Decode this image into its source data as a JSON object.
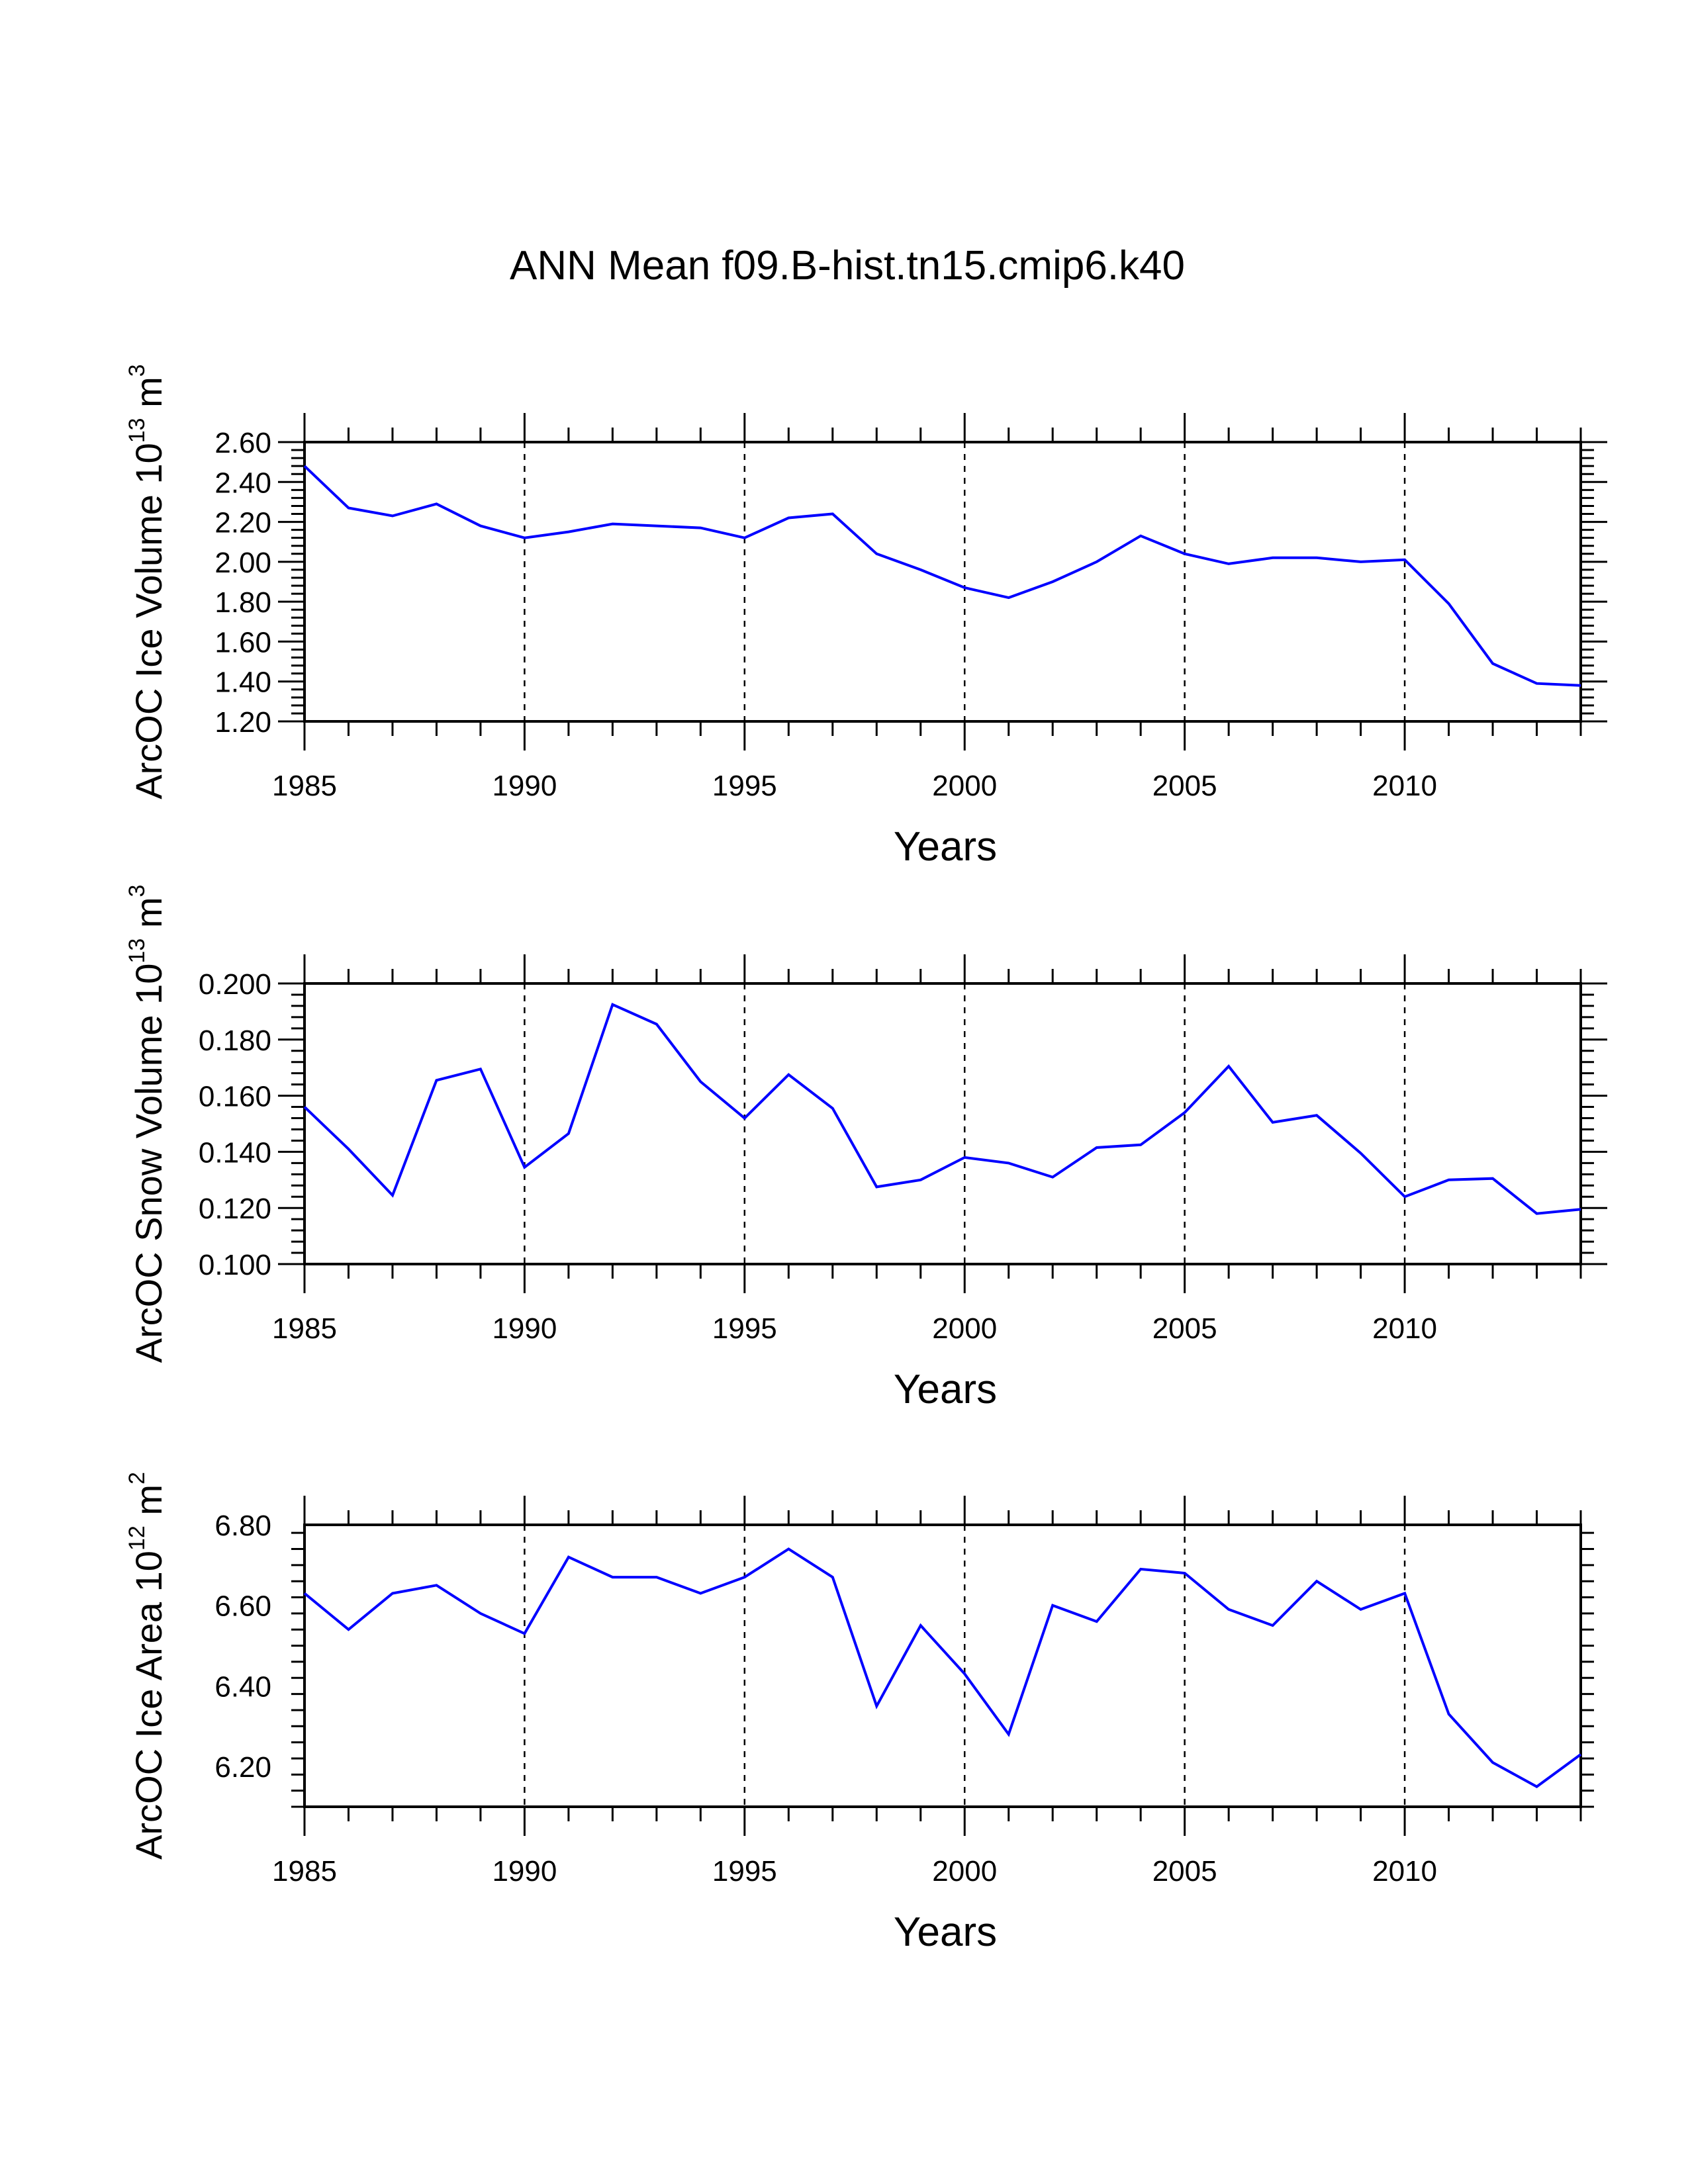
{
  "title": "ANN Mean f09.B-hist.tn15.cmip6.k40",
  "chart_data": [
    {
      "type": "line",
      "xlabel": "Years",
      "ylabel_main": "ArcOC Ice Volume 10",
      "ylabel_exp": "13",
      "ylabel_unit": " m",
      "ylabel_unit_exp": "3",
      "xlim": [
        1985,
        2014
      ],
      "ylim": [
        1.2,
        2.6
      ],
      "xticks": [
        1985,
        1990,
        1995,
        2000,
        2005,
        2010
      ],
      "xtick_labels": [
        "1985",
        "1990",
        "1995",
        "2000",
        "2005",
        "2010"
      ],
      "yticks": [
        1.2,
        1.4,
        1.6,
        1.8,
        2.0,
        2.2,
        2.4,
        2.6
      ],
      "ytick_labels": [
        "1.20",
        "1.40",
        "1.60",
        "1.80",
        "2.00",
        "2.20",
        "2.40",
        "2.60"
      ],
      "vgrid": [
        1990,
        1995,
        2000,
        2005,
        2010
      ],
      "line_color": "#0000ff",
      "x": [
        1985,
        1986,
        1987,
        1988,
        1989,
        1990,
        1991,
        1992,
        1993,
        1994,
        1995,
        1996,
        1997,
        1998,
        1999,
        2000,
        2001,
        2002,
        2003,
        2004,
        2005,
        2006,
        2007,
        2008,
        2009,
        2010,
        2011,
        2012,
        2013,
        2014
      ],
      "values": [
        2.48,
        2.27,
        2.23,
        2.29,
        2.18,
        2.12,
        2.15,
        2.19,
        2.18,
        2.17,
        2.12,
        2.22,
        2.24,
        2.04,
        1.96,
        1.87,
        1.82,
        1.9,
        2.0,
        2.13,
        2.04,
        1.99,
        2.02,
        2.02,
        2.0,
        2.01,
        1.79,
        1.49,
        1.39,
        1.38
      ]
    },
    {
      "type": "line",
      "xlabel": "Years",
      "ylabel_main": "ArcOC Snow Volume 10",
      "ylabel_exp": "13",
      "ylabel_unit": " m",
      "ylabel_unit_exp": "3",
      "xlim": [
        1985,
        2014
      ],
      "ylim": [
        0.1,
        0.2
      ],
      "xticks": [
        1985,
        1990,
        1995,
        2000,
        2005,
        2010
      ],
      "xtick_labels": [
        "1985",
        "1990",
        "1995",
        "2000",
        "2005",
        "2010"
      ],
      "yticks": [
        0.1,
        0.12,
        0.14,
        0.16,
        0.18,
        0.2
      ],
      "ytick_labels": [
        "0.100",
        "0.120",
        "0.140",
        "0.160",
        "0.180",
        "0.200"
      ],
      "vgrid": [
        1990,
        1995,
        2000,
        2005,
        2010
      ],
      "line_color": "#0000ff",
      "x": [
        1985,
        1986,
        1987,
        1988,
        1989,
        1990,
        1991,
        1992,
        1993,
        1994,
        1995,
        1996,
        1997,
        1998,
        1999,
        2000,
        2001,
        2002,
        2003,
        2004,
        2005,
        2006,
        2007,
        2008,
        2009,
        2010,
        2011,
        2012,
        2013,
        2014
      ],
      "values": [
        0.156,
        0.141,
        0.1245,
        0.1655,
        0.1695,
        0.1345,
        0.1465,
        0.1925,
        0.1855,
        0.165,
        0.152,
        0.1675,
        0.1555,
        0.1275,
        0.13,
        0.138,
        0.136,
        0.131,
        0.1415,
        0.1425,
        0.154,
        0.1705,
        0.1505,
        0.153,
        0.1395,
        0.124,
        0.13,
        0.1305,
        0.118,
        0.1195
      ]
    },
    {
      "type": "line",
      "xlabel": "Years",
      "ylabel_main": "ArcOC Ice Area 10",
      "ylabel_exp": "12",
      "ylabel_unit": " m",
      "ylabel_unit_exp": "2",
      "xlim": [
        1985,
        2014
      ],
      "ylim": [
        6.1,
        6.8
      ],
      "xticks": [
        1985,
        1990,
        1995,
        2000,
        2005,
        2010
      ],
      "xtick_labels": [
        "1985",
        "1990",
        "1995",
        "2000",
        "2005",
        "2010"
      ],
      "yticks": [
        6.2,
        6.4,
        6.6,
        6.8
      ],
      "ytick_labels": [
        "6.20",
        "6.40",
        "6.60",
        "6.80"
      ],
      "vgrid": [
        1990,
        1995,
        2000,
        2005,
        2010
      ],
      "line_color": "#0000ff",
      "x": [
        1985,
        1986,
        1987,
        1988,
        1989,
        1990,
        1991,
        1992,
        1993,
        1994,
        1995,
        1996,
        1997,
        1998,
        1999,
        2000,
        2001,
        2002,
        2003,
        2004,
        2005,
        2006,
        2007,
        2008,
        2009,
        2010,
        2011,
        2012,
        2013,
        2014
      ],
      "values": [
        6.63,
        6.54,
        6.63,
        6.65,
        6.58,
        6.53,
        6.72,
        6.67,
        6.67,
        6.63,
        6.67,
        6.74,
        6.67,
        6.35,
        6.55,
        6.43,
        6.28,
        6.6,
        6.56,
        6.69,
        6.68,
        6.59,
        6.55,
        6.66,
        6.59,
        6.63,
        6.33,
        6.21,
        6.15,
        6.23
      ]
    }
  ]
}
